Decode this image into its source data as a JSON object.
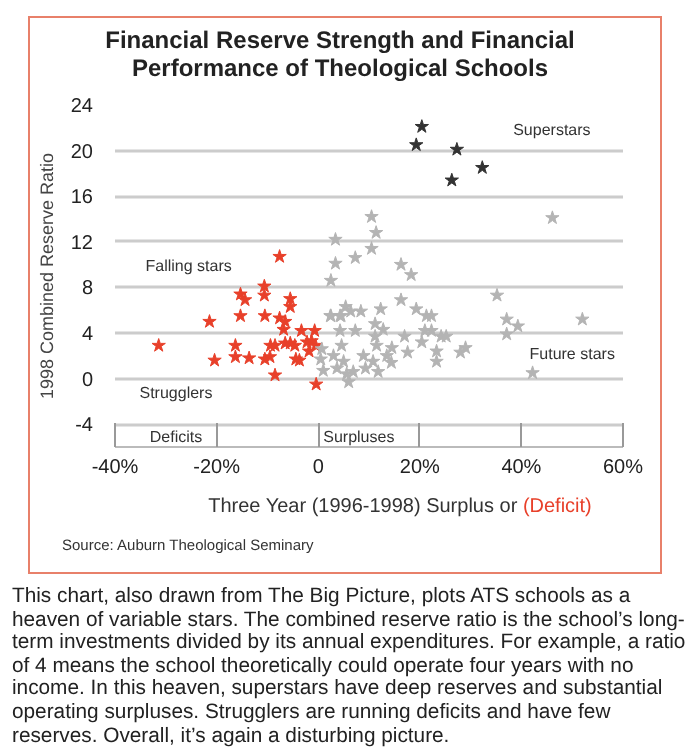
{
  "chart_data": {
    "type": "scatter",
    "title": "Financial Reserve Strength and Financial Performance of Theological Schools",
    "xlabel": "Three Year (1996-1998) Surplus or (Deficit)",
    "ylabel": "1998 Combined Reserve Ratio",
    "xlim": [
      -40,
      60
    ],
    "ylim": [
      -6,
      24
    ],
    "xticks": [
      {
        "value": -40,
        "label": "-40%"
      },
      {
        "value": -20,
        "label": "-20%"
      },
      0,
      {
        "value": 20,
        "label": "20%"
      },
      {
        "value": 40,
        "label": "40%"
      },
      {
        "value": 60,
        "label": "60%"
      }
    ],
    "yticks": [
      -4,
      0,
      4,
      8,
      12,
      16,
      20,
      24
    ],
    "grid": "y",
    "marker": "star",
    "series": [
      {
        "color": "#e8402a",
        "x": [
          -31.4,
          -21.4,
          -20.4,
          -16.3,
          -16.3,
          -15.3,
          -14.4,
          -15.3,
          -13.6,
          -10.6,
          -10.6,
          -10.5,
          -10.5,
          -9.5,
          -9.4,
          -8.5,
          -8.5,
          -7.6,
          -7.6,
          -6.8,
          -6.5,
          -6.5,
          -5.5,
          -5.5,
          -5.5,
          -4.6,
          -4.4,
          -3.7,
          -3.3,
          -2.2,
          -1.3,
          -0.7,
          -0.5,
          -0.4,
          -1.8
        ],
        "values": [
          2.9,
          5.0,
          1.6,
          2.9,
          1.9,
          7.4,
          6.9,
          5.5,
          1.8,
          8.1,
          7.3,
          5.5,
          1.7,
          1.9,
          2.9,
          2.9,
          0.3,
          10.7,
          5.3,
          4.3,
          5.0,
          3.1,
          3.1,
          7.0,
          6.3,
          2.9,
          1.7,
          1.6,
          4.2,
          3.2,
          3.3,
          4.2,
          2.9,
          -0.5,
          2.4
        ]
      },
      {
        "color": "#b4b4b4",
        "x": [
          46.1,
          10.5,
          11.4,
          3.4,
          10.5,
          7.3,
          3.4,
          16.3,
          18.3,
          2.5,
          35.2,
          16.3,
          37.1,
          37.1,
          39.3,
          52.0,
          42.2,
          5.4,
          4.5,
          2.5,
          6.4,
          8.4,
          12.3,
          19.3,
          21.3,
          22.3,
          22.3,
          24.2,
          23.3,
          23.3,
          28.0,
          29.0,
          0.7,
          0.5,
          1.0,
          2.4,
          3.0,
          3.7,
          4.3,
          4.3,
          4.6,
          5.0,
          5.6,
          6.0,
          6.9,
          7.3,
          8.9,
          9.3,
          10.8,
          11.2,
          11.2,
          11.5,
          11.8,
          12.8,
          13.5,
          14.4,
          14.5,
          17.0,
          17.6,
          20.4,
          21.0,
          25.2
        ],
        "values": [
          14.1,
          14.2,
          12.8,
          12.2,
          11.4,
          10.6,
          10.1,
          10.0,
          9.1,
          8.6,
          7.3,
          6.9,
          5.2,
          3.9,
          4.6,
          5.2,
          0.5,
          6.3,
          5.5,
          5.5,
          5.9,
          5.9,
          6.1,
          6.1,
          5.5,
          5.5,
          4.2,
          3.7,
          2.4,
          1.5,
          2.3,
          2.7,
          2.6,
          1.7,
          0.7,
          5.5,
          2.0,
          0.9,
          5.5,
          4.2,
          2.9,
          1.5,
          0.4,
          -0.3,
          0.6,
          4.2,
          2.0,
          0.9,
          1.5,
          4.8,
          3.7,
          2.9,
          0.6,
          4.3,
          2.0,
          1.4,
          2.7,
          3.7,
          2.3,
          3.2,
          4.2,
          3.7
        ]
      },
      {
        "color": "#333333",
        "x": [
          20.4,
          19.3,
          27.3,
          26.3,
          32.3
        ],
        "values": [
          22.1,
          20.5,
          20.1,
          17.4,
          18.5
        ]
      }
    ],
    "annotations": [
      "Superstars",
      "Falling stars",
      "Strugglers",
      "Future stars",
      "Deficits",
      "Surpluses",
      "Source: Auburn Theological Seminary",
      "This chart, also drawn from The Big Picture, plots ATS schools as a heaven of variable stars. The combined reserve ratio is the school’s long-term investments divided by its annual expenditures. For example, a ratio of 4 means the school theoretically could operate four years with no income. In this heaven, superstars have deep reserves and substantial operating surpluses. Strugglers are running deficits and have few reserves. Overall, it’s again a disturbing picture."
    ]
  }
}
